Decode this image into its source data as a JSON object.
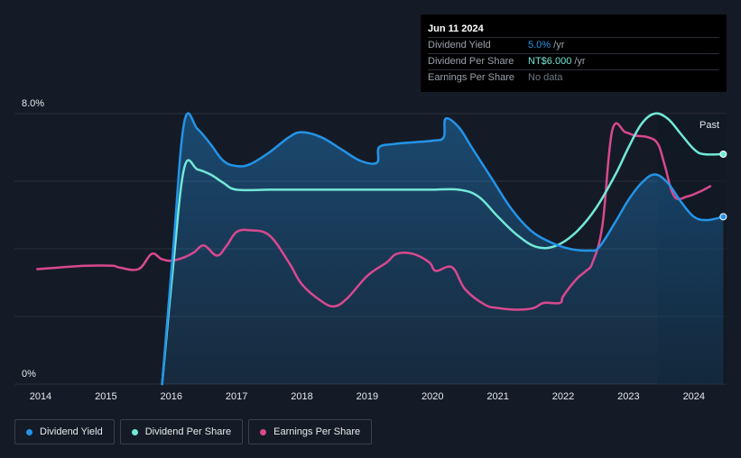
{
  "tooltip": {
    "date": "Jun 11 2024",
    "rows": [
      {
        "label": "Dividend Yield",
        "value": "5.0%",
        "unit": " /yr",
        "color": "#2394e8"
      },
      {
        "label": "Dividend Per Share",
        "value": "NT$6.000",
        "unit": " /yr",
        "color": "#72e8d8"
      },
      {
        "label": "Earnings Per Share",
        "value": "No data",
        "unit": "",
        "color": "#6f7783"
      }
    ]
  },
  "legend": [
    {
      "label": "Dividend Yield",
      "color": "#2394e8"
    },
    {
      "label": "Dividend Per Share",
      "color": "#72e8d8"
    },
    {
      "label": "Earnings Per Share",
      "color": "#d9488f"
    }
  ],
  "chart_data": {
    "type": "line",
    "x_range": [
      2013.6,
      2024.5
    ],
    "y_range": [
      0,
      8.0
    ],
    "y_tick_labels": [
      "8.0%",
      "0%"
    ],
    "y_ticks": [
      8.0,
      0
    ],
    "x_ticks": [
      2014,
      2015,
      2016,
      2017,
      2018,
      2019,
      2020,
      2021,
      2022,
      2023,
      2024
    ],
    "past_start": 2023.44,
    "past_label": "Past",
    "series": [
      {
        "name": "Dividend Yield",
        "color": "#2394e8",
        "filled": true,
        "x": [
          2015.86,
          2016.03,
          2016.2,
          2016.4,
          2016.6,
          2016.8,
          2017.0,
          2017.2,
          2017.5,
          2017.8,
          2018.0,
          2018.3,
          2018.6,
          2018.9,
          2019.15,
          2019.18,
          2019.4,
          2019.7,
          2020.0,
          2020.17,
          2020.2,
          2020.4,
          2020.6,
          2020.9,
          2021.2,
          2021.5,
          2021.8,
          2022.1,
          2022.4,
          2022.55,
          2022.8,
          2023.0,
          2023.2,
          2023.4,
          2023.6,
          2023.8,
          2024.0,
          2024.2,
          2024.45
        ],
        "y": [
          0,
          4.0,
          7.75,
          7.55,
          7.1,
          6.6,
          6.45,
          6.5,
          6.85,
          7.3,
          7.45,
          7.3,
          6.95,
          6.6,
          6.55,
          7.0,
          7.1,
          7.15,
          7.2,
          7.3,
          7.85,
          7.6,
          7.0,
          6.1,
          5.2,
          4.55,
          4.2,
          4.0,
          3.95,
          4.05,
          4.8,
          5.45,
          5.95,
          6.2,
          5.95,
          5.4,
          4.95,
          4.85,
          4.95
        ]
      },
      {
        "name": "Dividend Per Share",
        "color": "#72e8d8",
        "filled": false,
        "x": [
          2015.86,
          2016.03,
          2016.2,
          2016.4,
          2016.6,
          2016.8,
          2017.0,
          2017.5,
          2018.0,
          2018.5,
          2019.0,
          2019.5,
          2020.0,
          2020.4,
          2020.7,
          2021.0,
          2021.3,
          2021.6,
          2021.9,
          2022.2,
          2022.5,
          2022.8,
          2023.0,
          2023.2,
          2023.4,
          2023.6,
          2023.8,
          2024.0,
          2024.15,
          2024.45
        ],
        "y": [
          0,
          3.5,
          6.4,
          6.35,
          6.2,
          5.95,
          5.75,
          5.75,
          5.75,
          5.75,
          5.75,
          5.75,
          5.75,
          5.75,
          5.55,
          4.95,
          4.4,
          4.05,
          4.1,
          4.5,
          5.2,
          6.2,
          7.0,
          7.7,
          8.0,
          7.85,
          7.4,
          6.95,
          6.8,
          6.8
        ]
      },
      {
        "name": "Earnings Per Share",
        "color": "#d9488f",
        "filled": false,
        "x": [
          2013.95,
          2014.3,
          2014.7,
          2015.1,
          2015.2,
          2015.5,
          2015.7,
          2015.85,
          2016.0,
          2016.2,
          2016.35,
          2016.5,
          2016.7,
          2016.85,
          2017.0,
          2017.2,
          2017.5,
          2017.8,
          2018.0,
          2018.3,
          2018.5,
          2018.7,
          2019.0,
          2019.3,
          2019.45,
          2019.7,
          2019.95,
          2020.05,
          2020.3,
          2020.5,
          2020.8,
          2021.0,
          2021.3,
          2021.55,
          2021.7,
          2021.95,
          2022.0,
          2022.2,
          2022.35,
          2022.45,
          2022.6,
          2022.75,
          2022.95,
          2023.1,
          2023.3,
          2023.45,
          2023.55,
          2023.7,
          2023.9,
          2024.1,
          2024.25
        ],
        "y": [
          3.4,
          3.45,
          3.5,
          3.5,
          3.45,
          3.4,
          3.85,
          3.7,
          3.65,
          3.75,
          3.9,
          4.1,
          3.8,
          4.1,
          4.5,
          4.55,
          4.4,
          3.6,
          2.95,
          2.45,
          2.3,
          2.55,
          3.2,
          3.6,
          3.85,
          3.85,
          3.6,
          3.35,
          3.45,
          2.8,
          2.35,
          2.25,
          2.2,
          2.25,
          2.4,
          2.4,
          2.6,
          3.1,
          3.35,
          3.6,
          4.7,
          7.5,
          7.45,
          7.35,
          7.3,
          7.1,
          6.5,
          5.55,
          5.55,
          5.7,
          5.85
        ]
      }
    ]
  }
}
